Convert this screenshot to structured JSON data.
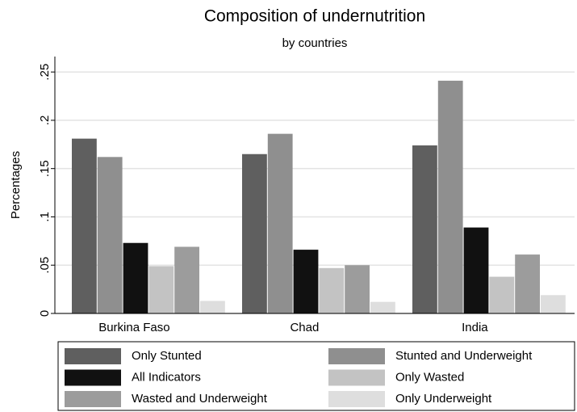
{
  "chart_data": {
    "type": "bar",
    "title": "Composition of undernutrition",
    "subtitle": "by countries",
    "y_label": "Percentages",
    "categories": [
      "Burkina Faso",
      "Chad",
      "India"
    ],
    "series": [
      {
        "name": "Only Stunted",
        "color": "#5f5f5f",
        "values": [
          0.181,
          0.165,
          0.174
        ]
      },
      {
        "name": "Stunted and Underweight",
        "color": "#8f8f8f",
        "values": [
          0.162,
          0.186,
          0.241
        ]
      },
      {
        "name": "All Indicators",
        "color": "#111111",
        "values": [
          0.073,
          0.066,
          0.089
        ]
      },
      {
        "name": "Only Wasted",
        "color": "#c3c3c3",
        "values": [
          0.049,
          0.047,
          0.038
        ]
      },
      {
        "name": "Wasted and Underweight",
        "color": "#9c9c9c",
        "values": [
          0.069,
          0.05,
          0.061
        ]
      },
      {
        "name": "Only Underweight",
        "color": "#dedede",
        "values": [
          0.013,
          0.012,
          0.019
        ]
      }
    ],
    "ylim": [
      0,
      0.266
    ],
    "yticks": [
      0,
      {
        "value": 0.05,
        "label": ".05"
      },
      {
        "value": 0.1,
        "label": ".1"
      },
      {
        "value": 0.15,
        "label": ".15"
      },
      {
        "value": 0.2,
        "label": ".2"
      },
      {
        "value": 0.25,
        "label": ".25"
      }
    ],
    "grid": true
  }
}
